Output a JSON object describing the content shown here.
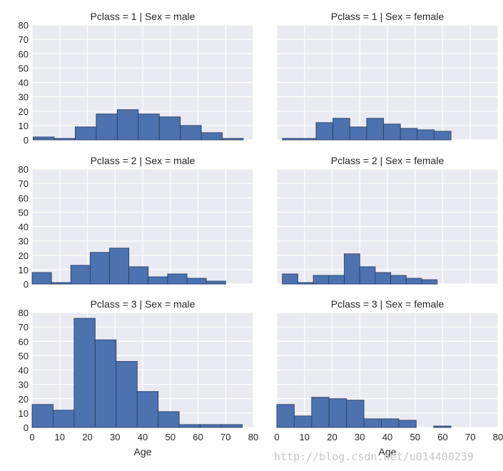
{
  "chart_data": {
    "type": "bar",
    "layout": "facet-grid",
    "xlabel": "Age",
    "xlim": [
      0,
      80
    ],
    "ylim": [
      0,
      80
    ],
    "xticks": [
      0,
      10,
      20,
      30,
      40,
      50,
      60,
      70,
      80
    ],
    "yticks": [
      0,
      10,
      20,
      30,
      40,
      50,
      60,
      70,
      80
    ],
    "grid": true,
    "color": "#4C72B0",
    "bin_width": 7.6,
    "panels": [
      {
        "title": "Pclass = 1 | Sex = male",
        "bins": [
          0.4,
          8.0,
          15.6,
          23.2,
          30.8,
          38.4,
          46.0,
          53.6,
          61.2,
          68.8,
          76.4
        ],
        "values": [
          2,
          1,
          9,
          18,
          21,
          18,
          16,
          10,
          5,
          1
        ]
      },
      {
        "title": "Pclass = 1 | Sex = female",
        "bins": [
          2.0,
          8.1,
          14.2,
          20.3,
          26.4,
          32.5,
          38.6,
          44.7,
          50.8,
          56.9,
          63.0
        ],
        "values": [
          1,
          1,
          12,
          15,
          9,
          15,
          11,
          8,
          7,
          6
        ]
      },
      {
        "title": "Pclass = 2 | Sex = male",
        "bins": [
          0.0,
          7.0,
          14.0,
          21.0,
          28.0,
          35.0,
          42.0,
          49.0,
          56.0,
          63.0,
          70.0
        ],
        "values": [
          8,
          1,
          13,
          22,
          25,
          12,
          5,
          7,
          4,
          2
        ]
      },
      {
        "title": "Pclass = 2 | Sex = female",
        "bins": [
          2.0,
          7.6,
          13.2,
          18.8,
          24.4,
          30.0,
          35.6,
          41.2,
          46.8,
          52.4,
          58.0
        ],
        "values": [
          7,
          1,
          6,
          6,
          21,
          12,
          8,
          6,
          4,
          3
        ]
      },
      {
        "title": "Pclass = 3 | Sex = male",
        "bins": [
          0.0,
          7.6,
          15.2,
          22.8,
          30.4,
          38.0,
          45.6,
          53.2,
          60.8,
          68.4,
          76.0
        ],
        "values": [
          16,
          12,
          76,
          61,
          46,
          25,
          11,
          2,
          2,
          2
        ]
      },
      {
        "title": "Pclass = 3 | Sex = female",
        "bins": [
          0.0,
          6.3,
          12.6,
          18.9,
          25.2,
          31.5,
          37.8,
          44.1,
          50.4,
          56.7,
          63.0
        ],
        "values": [
          16,
          8,
          21,
          20,
          19,
          6,
          6,
          5,
          0,
          1
        ]
      }
    ]
  },
  "watermark": "http://blog.csdn.net/u014400239"
}
